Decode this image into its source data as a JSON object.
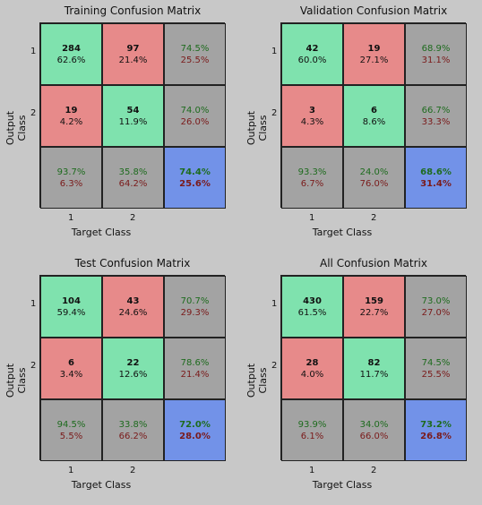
{
  "chart_data": [
    {
      "type": "table",
      "title": "Training Confusion Matrix",
      "xlabel": "Target Class",
      "ylabel": "Output Class",
      "x_ticks": [
        "1",
        "2"
      ],
      "y_ticks": [
        "1",
        "2"
      ],
      "cells": [
        [
          {
            "count": "284",
            "pct": "62.6%"
          },
          {
            "count": "97",
            "pct": "21.4%"
          },
          {
            "green": "74.5%",
            "red": "25.5%"
          }
        ],
        [
          {
            "count": "19",
            "pct": "4.2%"
          },
          {
            "count": "54",
            "pct": "11.9%"
          },
          {
            "green": "74.0%",
            "red": "26.0%"
          }
        ],
        [
          {
            "green": "93.7%",
            "red": "6.3%"
          },
          {
            "green": "35.8%",
            "red": "64.2%"
          },
          {
            "green": "74.4%",
            "red": "25.6%"
          }
        ]
      ]
    },
    {
      "type": "table",
      "title": "Validation Confusion Matrix",
      "xlabel": "Target Class",
      "ylabel": "Output Class",
      "x_ticks": [
        "1",
        "2"
      ],
      "y_ticks": [
        "1",
        "2"
      ],
      "cells": [
        [
          {
            "count": "42",
            "pct": "60.0%"
          },
          {
            "count": "19",
            "pct": "27.1%"
          },
          {
            "green": "68.9%",
            "red": "31.1%"
          }
        ],
        [
          {
            "count": "3",
            "pct": "4.3%"
          },
          {
            "count": "6",
            "pct": "8.6%"
          },
          {
            "green": "66.7%",
            "red": "33.3%"
          }
        ],
        [
          {
            "green": "93.3%",
            "red": "6.7%"
          },
          {
            "green": "24.0%",
            "red": "76.0%"
          },
          {
            "green": "68.6%",
            "red": "31.4%"
          }
        ]
      ]
    },
    {
      "type": "table",
      "title": "Test Confusion Matrix",
      "xlabel": "Target Class",
      "ylabel": "Output Class",
      "x_ticks": [
        "1",
        "2"
      ],
      "y_ticks": [
        "1",
        "2"
      ],
      "cells": [
        [
          {
            "count": "104",
            "pct": "59.4%"
          },
          {
            "count": "43",
            "pct": "24.6%"
          },
          {
            "green": "70.7%",
            "red": "29.3%"
          }
        ],
        [
          {
            "count": "6",
            "pct": "3.4%"
          },
          {
            "count": "22",
            "pct": "12.6%"
          },
          {
            "green": "78.6%",
            "red": "21.4%"
          }
        ],
        [
          {
            "green": "94.5%",
            "red": "5.5%"
          },
          {
            "green": "33.8%",
            "red": "66.2%"
          },
          {
            "green": "72.0%",
            "red": "28.0%"
          }
        ]
      ]
    },
    {
      "type": "table",
      "title": "All Confusion Matrix",
      "xlabel": "Target Class",
      "ylabel": "Output Class",
      "x_ticks": [
        "1",
        "2"
      ],
      "y_ticks": [
        "1",
        "2"
      ],
      "cells": [
        [
          {
            "count": "430",
            "pct": "61.5%"
          },
          {
            "count": "159",
            "pct": "22.7%"
          },
          {
            "green": "73.0%",
            "red": "27.0%"
          }
        ],
        [
          {
            "count": "28",
            "pct": "4.0%"
          },
          {
            "count": "82",
            "pct": "11.7%"
          },
          {
            "green": "74.5%",
            "red": "25.5%"
          }
        ],
        [
          {
            "green": "93.9%",
            "red": "6.1%"
          },
          {
            "green": "34.0%",
            "red": "66.0%"
          },
          {
            "green": "73.2%",
            "red": "26.8%"
          }
        ]
      ]
    }
  ],
  "colors": {
    "correct": "#7fe2ae",
    "incorrect": "#e78a8a",
    "summary": "#a3a3a3",
    "overall": "#7292e8",
    "background": "#c8c8c8"
  }
}
